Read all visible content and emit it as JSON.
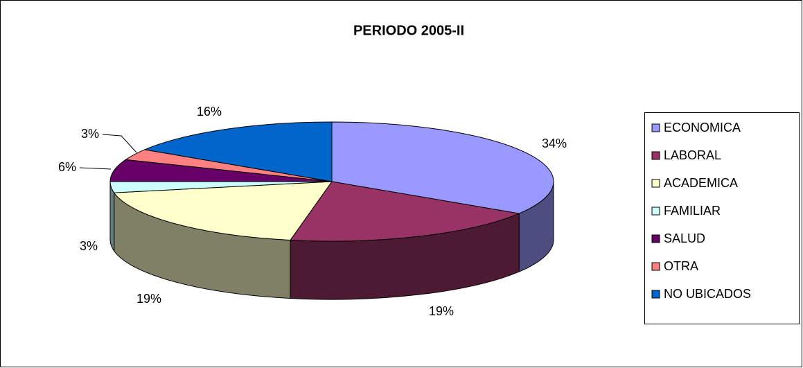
{
  "chart_data": {
    "type": "pie3d",
    "title": "PERIODO 2005-II",
    "categories": [
      "ECONOMICA",
      "LABORAL",
      "ACADEMICA",
      "FAMILIAR",
      "SALUD",
      "OTRA",
      "NO UBICADOS"
    ],
    "values": [
      34,
      19,
      19,
      3,
      6,
      3,
      16
    ],
    "value_labels": [
      "34%",
      "19%",
      "19%",
      "3%",
      "6%",
      "3%",
      "16%"
    ],
    "colors": [
      "#9999ff",
      "#993366",
      "#ffffcc",
      "#ccffff",
      "#660066",
      "#ff8080",
      "#0066cc"
    ],
    "legend": "right"
  }
}
